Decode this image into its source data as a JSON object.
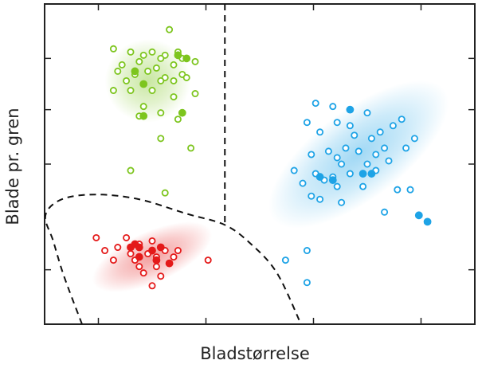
{
  "chart_data": {
    "type": "scatter",
    "title": "",
    "xlabel": "Bladstørrelse",
    "ylabel": "Blade pr. gren",
    "xlim": [
      0,
      100
    ],
    "ylim": [
      0,
      100
    ],
    "grid": false,
    "legend": "none",
    "x_ticks": [
      12.5,
      37.5,
      62.5,
      87.5
    ],
    "y_ticks": [
      17,
      50,
      67,
      83
    ],
    "colors": {
      "green": "#7dc51e",
      "blue": "#1ea3e6",
      "red": "#e41a1a",
      "boundary": "#111111"
    },
    "clusters": [
      {
        "name": "green",
        "center": [
          24,
          76
        ],
        "spread": [
          10,
          13
        ],
        "angle": 0
      },
      {
        "name": "blue",
        "center": [
          73,
          53
        ],
        "spread": [
          25,
          14
        ],
        "angle": -37
      },
      {
        "name": "red",
        "center": [
          25,
          21
        ],
        "spread": [
          15,
          8
        ],
        "angle": -24
      }
    ],
    "boundaries": [
      {
        "name": "vertical-boundary",
        "points": [
          [
            41.9,
            100
          ],
          [
            41.9,
            31
          ]
        ]
      },
      {
        "name": "curved-boundary",
        "points": [
          [
            8.7,
            0
          ],
          [
            4.5,
            15
          ],
          [
            2,
            26
          ],
          [
            0.2,
            34
          ],
          [
            4,
            39
          ],
          [
            12,
            40.5
          ],
          [
            22,
            39
          ],
          [
            33,
            34.5
          ],
          [
            41.9,
            31
          ],
          [
            48,
            25
          ],
          [
            54,
            16
          ],
          [
            59.6,
            0
          ]
        ]
      }
    ],
    "series": [
      {
        "name": "green",
        "color": "#7dc51e",
        "open": [
          [
            29,
            92
          ],
          [
            16,
            86
          ],
          [
            20,
            85
          ],
          [
            25,
            85
          ],
          [
            28,
            84
          ],
          [
            31,
            85
          ],
          [
            23,
            84
          ],
          [
            27,
            83
          ],
          [
            32,
            83
          ],
          [
            18,
            81
          ],
          [
            22,
            82
          ],
          [
            26,
            80
          ],
          [
            30,
            81
          ],
          [
            35,
            82
          ],
          [
            17,
            79
          ],
          [
            21,
            78
          ],
          [
            24,
            79
          ],
          [
            28,
            77
          ],
          [
            32,
            78
          ],
          [
            19,
            76
          ],
          [
            23,
            75
          ],
          [
            27,
            76
          ],
          [
            30,
            76
          ],
          [
            33,
            77
          ],
          [
            16,
            73
          ],
          [
            20,
            73
          ],
          [
            25,
            73
          ],
          [
            30,
            71
          ],
          [
            35,
            72
          ],
          [
            23,
            68
          ],
          [
            27,
            66
          ],
          [
            31,
            64
          ],
          [
            22,
            65
          ],
          [
            27,
            58
          ],
          [
            34,
            55
          ],
          [
            20,
            48
          ],
          [
            28,
            41
          ]
        ],
        "filled": [
          [
            31,
            84
          ],
          [
            33,
            83
          ],
          [
            21,
            79
          ],
          [
            23,
            75
          ],
          [
            32,
            66
          ],
          [
            23,
            65
          ]
        ]
      },
      {
        "name": "blue",
        "color": "#1ea3e6",
        "open": [
          [
            63,
            69
          ],
          [
            67,
            68
          ],
          [
            75,
            66
          ],
          [
            61,
            63
          ],
          [
            68,
            63
          ],
          [
            71,
            62
          ],
          [
            78,
            60
          ],
          [
            83,
            64
          ],
          [
            81,
            62
          ],
          [
            64,
            60
          ],
          [
            72,
            59
          ],
          [
            76,
            58
          ],
          [
            70,
            55
          ],
          [
            66,
            54
          ],
          [
            73,
            54
          ],
          [
            62,
            53
          ],
          [
            68,
            52
          ],
          [
            77,
            53
          ],
          [
            79,
            55
          ],
          [
            84,
            55
          ],
          [
            86,
            58
          ],
          [
            69,
            50
          ],
          [
            75,
            50
          ],
          [
            80,
            51
          ],
          [
            58,
            48
          ],
          [
            63,
            47
          ],
          [
            67,
            46
          ],
          [
            71,
            47
          ],
          [
            77,
            48
          ],
          [
            60,
            44
          ],
          [
            65,
            45
          ],
          [
            68,
            43
          ],
          [
            74,
            43
          ],
          [
            82,
            42
          ],
          [
            85,
            42
          ],
          [
            62,
            40
          ],
          [
            69,
            38
          ],
          [
            64,
            39
          ],
          [
            79,
            35
          ],
          [
            61,
            23
          ],
          [
            56,
            20
          ],
          [
            61,
            13
          ]
        ],
        "filled": [
          [
            71,
            67
          ],
          [
            64,
            46
          ],
          [
            67,
            45
          ],
          [
            74,
            47
          ],
          [
            76,
            47
          ],
          [
            87,
            34
          ],
          [
            89,
            32
          ]
        ]
      },
      {
        "name": "red",
        "color": "#e41a1a",
        "open": [
          [
            12,
            27
          ],
          [
            19,
            27
          ],
          [
            14,
            23
          ],
          [
            17,
            24
          ],
          [
            22,
            25
          ],
          [
            25,
            26
          ],
          [
            20,
            22
          ],
          [
            24,
            22
          ],
          [
            28,
            23
          ],
          [
            31,
            23
          ],
          [
            16,
            20
          ],
          [
            21,
            20
          ],
          [
            26,
            21
          ],
          [
            30,
            21
          ],
          [
            38,
            20
          ],
          [
            22,
            18
          ],
          [
            26,
            18
          ],
          [
            29,
            19
          ],
          [
            23,
            16
          ],
          [
            27,
            15
          ],
          [
            25,
            12
          ]
        ],
        "filled": [
          [
            20,
            24
          ],
          [
            21,
            25
          ],
          [
            22,
            24
          ],
          [
            25,
            23
          ],
          [
            27,
            24
          ],
          [
            22,
            21
          ],
          [
            26,
            20
          ],
          [
            29,
            19
          ]
        ]
      }
    ]
  }
}
